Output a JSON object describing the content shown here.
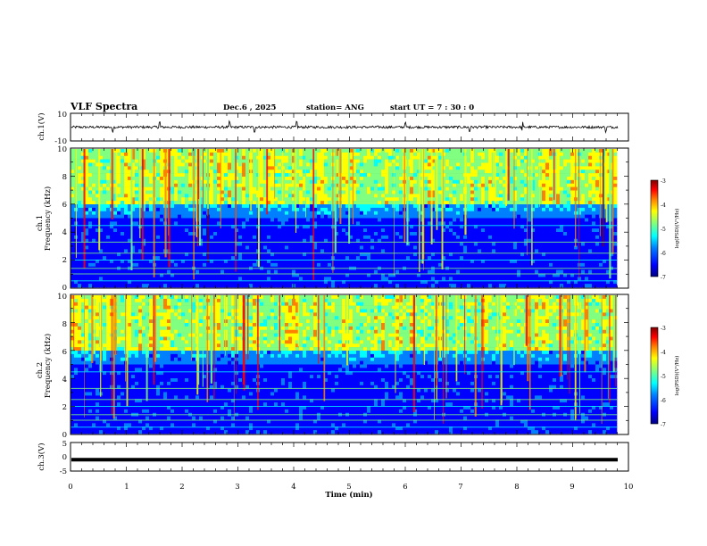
{
  "header": {
    "title": "VLF Spectra",
    "date": "Dec.6 , 2025",
    "station": "station= ANG",
    "start": "start UT = 7 : 30 : 0"
  },
  "chart_data": [
    {
      "type": "line",
      "name": "ch1-voltage",
      "ylabel": "ch.1(V)",
      "ylim": [
        -10,
        10
      ],
      "yticks": [
        "10",
        "-10"
      ],
      "xlim": [
        0,
        10
      ],
      "baseline": 0
    },
    {
      "type": "heatmap",
      "name": "ch1-spectrogram",
      "ylabel": "ch.1",
      "ylabel2": "Frequency (kHz)",
      "ylim": [
        0,
        10
      ],
      "yticks": [
        "0",
        "2",
        "4",
        "6",
        "8",
        "10"
      ],
      "xlim": [
        0,
        10
      ]
    },
    {
      "type": "heatmap",
      "name": "ch2-spectrogram",
      "ylabel": "ch.2",
      "ylabel2": "Frequency (kHz)",
      "ylim": [
        0,
        10
      ],
      "yticks": [
        "0",
        "2",
        "4",
        "6",
        "8",
        "10"
      ],
      "xlim": [
        0,
        10
      ]
    },
    {
      "type": "line",
      "name": "ch3-voltage",
      "ylabel": "ch.3(V)",
      "ylim": [
        -5,
        5
      ],
      "yticks": [
        "5",
        "0",
        "-5"
      ],
      "xlim": [
        0,
        10
      ],
      "baseline": -1
    }
  ],
  "xaxis": {
    "label": "Time (min)",
    "ticks": [
      "0",
      "1",
      "2",
      "3",
      "4",
      "5",
      "6",
      "7",
      "8",
      "9",
      "10"
    ]
  },
  "colorbar": {
    "label": "log(PSD)(V²/Hz)",
    "min": -7,
    "max": -3,
    "ticks": [
      "-3",
      "-4",
      "-5",
      "-6",
      "-7"
    ]
  },
  "colors": {
    "frame": "#000000",
    "background": "#ffffff",
    "colormap": [
      "#00007f",
      "#0000ff",
      "#0080ff",
      "#00ffff",
      "#80ff80",
      "#ffff00",
      "#ff8000",
      "#ff0000",
      "#7f0000"
    ]
  }
}
